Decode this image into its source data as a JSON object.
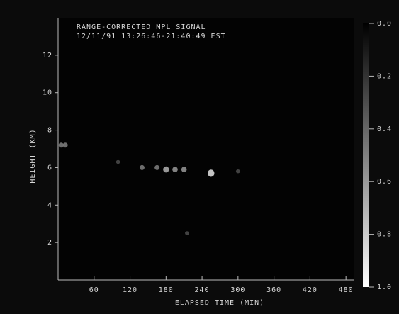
{
  "chart_data": {
    "type": "scatter",
    "title": "RANGE-CORRECTED MPL SIGNAL",
    "subtitle": "12/11/91   13:26:46-21:40:49 EST",
    "xlabel": "ELAPSED TIME (MIN)",
    "ylabel": "HEIGHT (KM)",
    "xlim": [
      0,
      494
    ],
    "xticks": [
      60,
      120,
      180,
      240,
      300,
      360,
      420,
      480
    ],
    "ylim": [
      0,
      14
    ],
    "yticks": [
      2,
      4,
      6,
      8,
      10,
      12
    ],
    "x": [
      5,
      12,
      100,
      140,
      165,
      180,
      195,
      210,
      255,
      300,
      215
    ],
    "y": [
      7.2,
      7.2,
      6.3,
      6.0,
      6.0,
      5.9,
      5.9,
      5.9,
      5.7,
      5.8,
      2.5
    ],
    "values": [
      0.5,
      0.5,
      0.3,
      0.5,
      0.5,
      0.7,
      0.6,
      0.6,
      0.9,
      0.3,
      0.3
    ],
    "colorbar_lim": [
      0,
      1
    ],
    "colorbar_ticks": [
      {
        "value": 0,
        "label": "0.0"
      },
      0.2,
      0.4,
      0.6,
      0.8,
      {
        "value": 1,
        "label": "1.0"
      }
    ],
    "colormap": [
      "#000000",
      "#ffffff"
    ]
  }
}
